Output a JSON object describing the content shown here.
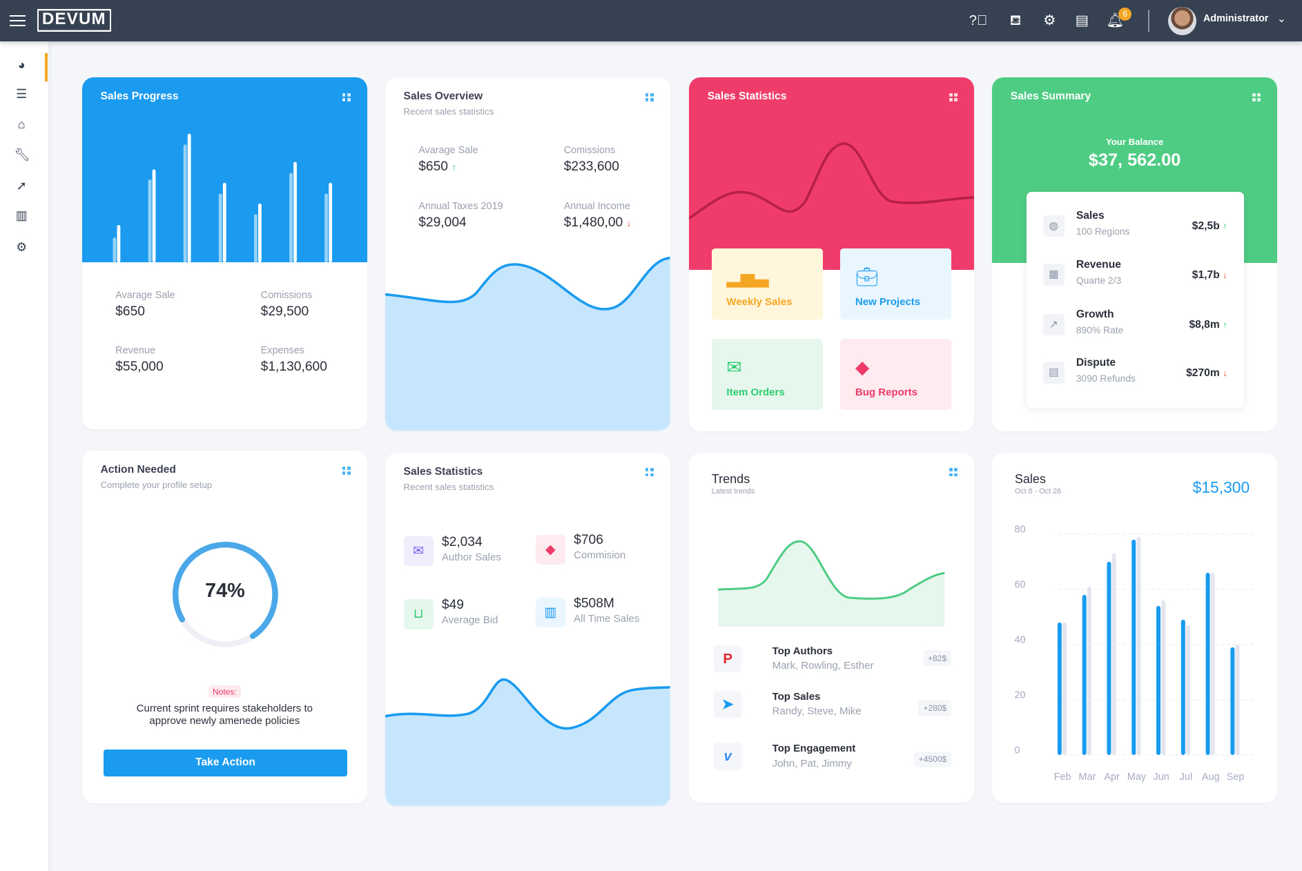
{
  "header": {
    "logo": "DEVUM",
    "user": "Administrator",
    "notifications": "6",
    "icons": [
      "help-icon",
      "paint-bucket-icon",
      "gear-icon",
      "server-icon",
      "bell-icon"
    ]
  },
  "sidebar": {
    "items": [
      "dashboard",
      "layers",
      "home",
      "tools",
      "rocket",
      "chart",
      "settings"
    ]
  },
  "sales_progress": {
    "title": "Sales Progress",
    "bars": [
      [
        30,
        45
      ],
      [
        100,
        112
      ],
      [
        142,
        155
      ],
      [
        83,
        96
      ],
      [
        58,
        71
      ],
      [
        108,
        121
      ],
      [
        83,
        96
      ]
    ],
    "stats": [
      {
        "label": "Avarage Sale",
        "value": "$650"
      },
      {
        "label": "Comissions",
        "value": "$29,500"
      },
      {
        "label": "Revenue",
        "value": "$55,000"
      },
      {
        "label": "Expenses",
        "value": "$1,130,600"
      }
    ]
  },
  "sales_overview": {
    "title": "Sales Overview",
    "subtitle": "Recent sales statistics",
    "stats": [
      {
        "label": "Avarage Sale",
        "value": "$650",
        "trend": "up"
      },
      {
        "label": "Comissions",
        "value": "$233,600"
      },
      {
        "label": "Annual Taxes 2019",
        "value": "$29,004"
      },
      {
        "label": "Annual Income",
        "value": "$1,480,00",
        "trend": "down"
      }
    ]
  },
  "sales_statistics": {
    "title": "Sales Statistics",
    "tiles": [
      {
        "label": "Weekly Sales",
        "color": "#f5a623"
      },
      {
        "label": "New Projects",
        "color": "#1a9bf0"
      },
      {
        "label": "Item Orders",
        "color": "#2ecc71"
      },
      {
        "label": "Bug Reports",
        "color": "#ef3b6a"
      }
    ]
  },
  "sales_summary": {
    "title": "Sales Summary",
    "balance_label": "Your Balance",
    "balance": "$37, 562.00",
    "rows": [
      {
        "name": "Sales",
        "sub": "100 Regions",
        "amount": "$2,5b",
        "trend": "up"
      },
      {
        "name": "Revenue",
        "sub": "Quarte 2/3",
        "amount": "$1,7b",
        "trend": "down"
      },
      {
        "name": "Growth",
        "sub": "890% Rate",
        "amount": "$8,8m",
        "trend": "up"
      },
      {
        "name": "Dispute",
        "sub": "3090 Refunds",
        "amount": "$270m",
        "trend": "down"
      }
    ]
  },
  "action": {
    "title": "Action Needed",
    "subtitle": "Complete your profile setup",
    "progress": 74,
    "progress_label": "74%",
    "notes_label": "Notes:",
    "notes": "Current sprint requires stakeholders to approve newly amenede policies",
    "button": "Take Action"
  },
  "sales_statistics2": {
    "title": "Sales Statistics",
    "subtitle": "Recent sales statistics",
    "items": [
      {
        "value": "$2,034",
        "label": "Author Sales"
      },
      {
        "value": "$706",
        "label": "Commision"
      },
      {
        "value": "$49",
        "label": "Average Bid"
      },
      {
        "value": "$508M",
        "label": "All Time Sales"
      }
    ]
  },
  "trends": {
    "title": "Trends",
    "subtitle": "Latest trends",
    "items": [
      {
        "name": "Top Authors",
        "sub": "Mark, Rowling, Esther",
        "badge": "+82$"
      },
      {
        "name": "Top Sales",
        "sub": "Randy, Steve, Mike",
        "badge": "+280$"
      },
      {
        "name": "Top Engagement",
        "sub": "John, Pat, Jimmy",
        "badge": "+4500$"
      }
    ]
  },
  "chart_data": {
    "type": "bar",
    "title": "Sales",
    "subtitle": "Oct  8 - Oct 26",
    "total": "$15,300",
    "categories": [
      "Feb",
      "Mar",
      "Apr",
      "May",
      "Jun",
      "Jul",
      "Aug",
      "Sep"
    ],
    "series": [
      {
        "name": "current",
        "color": "#1a9bf0",
        "values": [
          48,
          58,
          70,
          78,
          54,
          49,
          66,
          39
        ]
      },
      {
        "name": "previous",
        "color": "#e4e6ef",
        "values": [
          48,
          61,
          73,
          79,
          56,
          47,
          66,
          40
        ]
      }
    ],
    "ylim": [
      0,
      80
    ],
    "yticks": [
      "0",
      "20",
      "40",
      "60",
      "80"
    ],
    "grid": true
  }
}
